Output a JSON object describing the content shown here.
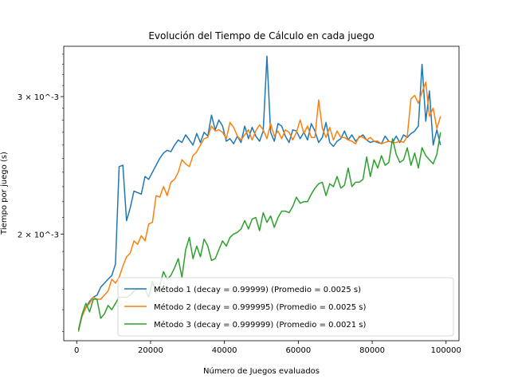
{
  "chart_data": {
    "type": "line",
    "title": "Evolución del Tiempo de Cálculo en cada juego",
    "xlabel": "Número de Juegos evaluados",
    "ylabel": "Tiempo por juego (s)",
    "y_scale": "log",
    "xlim": [
      -3500,
      103500
    ],
    "ylim": [
      0.00146,
      0.00348
    ],
    "grid": false,
    "legend_placement": "lower-right",
    "x_ticks": [
      0,
      20000,
      40000,
      60000,
      80000,
      100000
    ],
    "x_tick_labels": [
      "0",
      "20000",
      "40000",
      "60000",
      "80000",
      "100000"
    ],
    "y_ticks": [
      0.002,
      0.003
    ],
    "y_tick_labels": [
      "2 × 10^-3",
      "3 × 10^-3"
    ],
    "series": [
      {
        "name": "Método 1 (decay = 0.99999) (Promedio = 0.0025 s)",
        "color": "#1f77b4",
        "x": [
          500,
          1500,
          2500,
          3500,
          4500,
          5500,
          6500,
          7500,
          8500,
          9500,
          10500,
          11500,
          12500,
          13500,
          14500,
          15500,
          16500,
          17500,
          18500,
          19500,
          20500,
          21500,
          22500,
          23500,
          24500,
          25500,
          26500,
          27500,
          28500,
          29500,
          30500,
          31500,
          32500,
          33500,
          34500,
          35500,
          36500,
          37500,
          38500,
          39500,
          40500,
          41500,
          42500,
          43500,
          44500,
          45500,
          46500,
          47500,
          48500,
          49500,
          50500,
          51500,
          52500,
          53500,
          54500,
          55500,
          56500,
          57500,
          58500,
          59500,
          60500,
          61500,
          62500,
          63500,
          64500,
          65500,
          66500,
          67500,
          68500,
          69500,
          70500,
          71500,
          72500,
          73500,
          74500,
          75500,
          76500,
          77500,
          78500,
          79500,
          80500,
          81500,
          82500,
          83500,
          84500,
          85500,
          86500,
          87500,
          88500,
          89500,
          90500,
          91500,
          92500,
          93500,
          94500,
          95500,
          96500,
          97500,
          98500
        ],
        "values": [
          0.00151,
          0.00158,
          0.00161,
          0.00164,
          0.00166,
          0.00167,
          0.00171,
          0.00173,
          0.00175,
          0.00177,
          0.00183,
          0.00244,
          0.00245,
          0.00208,
          0.00216,
          0.00227,
          0.00226,
          0.00225,
          0.00237,
          0.00235,
          0.0024,
          0.00245,
          0.0025,
          0.00254,
          0.00256,
          0.00255,
          0.0026,
          0.00264,
          0.00262,
          0.00268,
          0.00264,
          0.0026,
          0.00269,
          0.00262,
          0.0027,
          0.00267,
          0.00284,
          0.00272,
          0.0028,
          0.00275,
          0.00263,
          0.00265,
          0.00261,
          0.00267,
          0.00262,
          0.00275,
          0.00265,
          0.00274,
          0.00267,
          0.00263,
          0.00271,
          0.00338,
          0.0027,
          0.00263,
          0.00277,
          0.00275,
          0.00267,
          0.00262,
          0.00272,
          0.00271,
          0.00265,
          0.0027,
          0.00264,
          0.00277,
          0.00271,
          0.00262,
          0.00266,
          0.00278,
          0.00262,
          0.00259,
          0.00263,
          0.00265,
          0.00271,
          0.00264,
          0.00268,
          0.00263,
          0.00266,
          0.00268,
          0.00264,
          0.00262,
          0.00263,
          0.00262,
          0.00261,
          0.00267,
          0.00263,
          0.00262,
          0.00267,
          0.00262,
          0.00268,
          0.00266,
          0.00269,
          0.00271,
          0.00275,
          0.0033,
          0.00279,
          0.00305,
          0.0026,
          0.00272,
          0.0026
        ]
      },
      {
        "name": "Método 2 (decay = 0.999995) (Promedio = 0.0025 s)",
        "color": "#ff7f0e",
        "x": [
          500,
          1500,
          2500,
          3500,
          4500,
          5500,
          6500,
          7500,
          8500,
          9500,
          10500,
          11500,
          12500,
          13500,
          14500,
          15500,
          16500,
          17500,
          18500,
          19500,
          20500,
          21500,
          22500,
          23500,
          24500,
          25500,
          26500,
          27500,
          28500,
          29500,
          30500,
          31500,
          32500,
          33500,
          34500,
          35500,
          36500,
          37500,
          38500,
          39500,
          40500,
          41500,
          42500,
          43500,
          44500,
          45500,
          46500,
          47500,
          48500,
          49500,
          50500,
          51500,
          52500,
          53500,
          54500,
          55500,
          56500,
          57500,
          58500,
          59500,
          60500,
          61500,
          62500,
          63500,
          64500,
          65500,
          66500,
          67500,
          68500,
          69500,
          70500,
          71500,
          72500,
          73500,
          74500,
          75500,
          76500,
          77500,
          78500,
          79500,
          80500,
          81500,
          82500,
          83500,
          84500,
          85500,
          86500,
          87500,
          88500,
          89500,
          90500,
          91500,
          92500,
          93500,
          94500,
          95500,
          96500,
          97500,
          98500
        ],
        "values": [
          0.00151,
          0.00157,
          0.00161,
          0.00163,
          0.00166,
          0.00165,
          0.00165,
          0.00167,
          0.00169,
          0.00175,
          0.00173,
          0.00176,
          0.00182,
          0.00187,
          0.00189,
          0.00196,
          0.00194,
          0.00199,
          0.00196,
          0.00206,
          0.00207,
          0.00224,
          0.00223,
          0.0023,
          0.00224,
          0.00233,
          0.00235,
          0.0024,
          0.00249,
          0.00246,
          0.00244,
          0.00252,
          0.00255,
          0.0026,
          0.00265,
          0.00266,
          0.00275,
          0.00271,
          0.00272,
          0.0027,
          0.00265,
          0.00278,
          0.00274,
          0.00267,
          0.00264,
          0.00268,
          0.00272,
          0.00264,
          0.00271,
          0.00276,
          0.00272,
          0.00265,
          0.00277,
          0.00267,
          0.00271,
          0.00265,
          0.00272,
          0.0027,
          0.00264,
          0.0027,
          0.0028,
          0.00269,
          0.00275,
          0.00266,
          0.00266,
          0.00297,
          0.00273,
          0.00266,
          0.00274,
          0.00264,
          0.00271,
          0.00266,
          0.00266,
          0.00264,
          0.00263,
          0.00261,
          0.00267,
          0.00266,
          0.00264,
          0.00266,
          0.00263,
          0.00263,
          0.00261,
          0.00262,
          0.00263,
          0.00262,
          0.00262,
          0.00263,
          0.00262,
          0.00267,
          0.00298,
          0.00301,
          0.00294,
          0.00304,
          0.00313,
          0.00283,
          0.0029,
          0.00273,
          0.00283
        ]
      },
      {
        "name": "Método 3 (decay = 0.999999) (Promedio = 0.0021 s)",
        "color": "#2ca02c",
        "x": [
          500,
          1500,
          2500,
          3500,
          4500,
          5500,
          6500,
          7500,
          8500,
          9500,
          10500,
          11500,
          12500,
          13500,
          14500,
          15500,
          16500,
          17500,
          18500,
          19500,
          20500,
          21500,
          22500,
          23500,
          24500,
          25500,
          26500,
          27500,
          28500,
          29500,
          30500,
          31500,
          32500,
          33500,
          34500,
          35500,
          36500,
          37500,
          38500,
          39500,
          40500,
          41500,
          42500,
          43500,
          44500,
          45500,
          46500,
          47500,
          48500,
          49500,
          50500,
          51500,
          52500,
          53500,
          54500,
          55500,
          56500,
          57500,
          58500,
          59500,
          60500,
          61500,
          62500,
          63500,
          64500,
          65500,
          66500,
          67500,
          68500,
          69500,
          70500,
          71500,
          72500,
          73500,
          74500,
          75500,
          76500,
          77500,
          78500,
          79500,
          80500,
          81500,
          82500,
          83500,
          84500,
          85500,
          86500,
          87500,
          88500,
          89500,
          90500,
          91500,
          92500,
          93500,
          94500,
          95500,
          96500,
          97500,
          98500
        ],
        "values": [
          0.0015,
          0.00158,
          0.00163,
          0.00159,
          0.00165,
          0.00165,
          0.00156,
          0.00158,
          0.00162,
          0.0016,
          0.00163,
          0.00166,
          0.00166,
          0.00166,
          0.00167,
          0.00169,
          0.0017,
          0.0017,
          0.0017,
          0.00166,
          0.00174,
          0.00168,
          0.00172,
          0.00179,
          0.00175,
          0.00177,
          0.00181,
          0.00186,
          0.00176,
          0.00191,
          0.00198,
          0.00186,
          0.00193,
          0.00187,
          0.00197,
          0.00193,
          0.00185,
          0.00186,
          0.00191,
          0.00196,
          0.00193,
          0.00198,
          0.002,
          0.00201,
          0.00203,
          0.00208,
          0.00203,
          0.00209,
          0.0021,
          0.00202,
          0.00213,
          0.00207,
          0.00211,
          0.00204,
          0.0021,
          0.00214,
          0.00214,
          0.00213,
          0.00217,
          0.00223,
          0.00219,
          0.0022,
          0.0022,
          0.00225,
          0.00229,
          0.00232,
          0.00233,
          0.00224,
          0.00232,
          0.0023,
          0.00237,
          0.00229,
          0.00231,
          0.00243,
          0.0023,
          0.00233,
          0.00233,
          0.00235,
          0.00251,
          0.00237,
          0.00249,
          0.00243,
          0.00252,
          0.00245,
          0.00247,
          0.00265,
          0.00253,
          0.00247,
          0.00249,
          0.00258,
          0.00245,
          0.00254,
          0.00243,
          0.00258,
          0.00252,
          0.00249,
          0.00246,
          0.00253,
          0.0027
        ]
      }
    ]
  }
}
